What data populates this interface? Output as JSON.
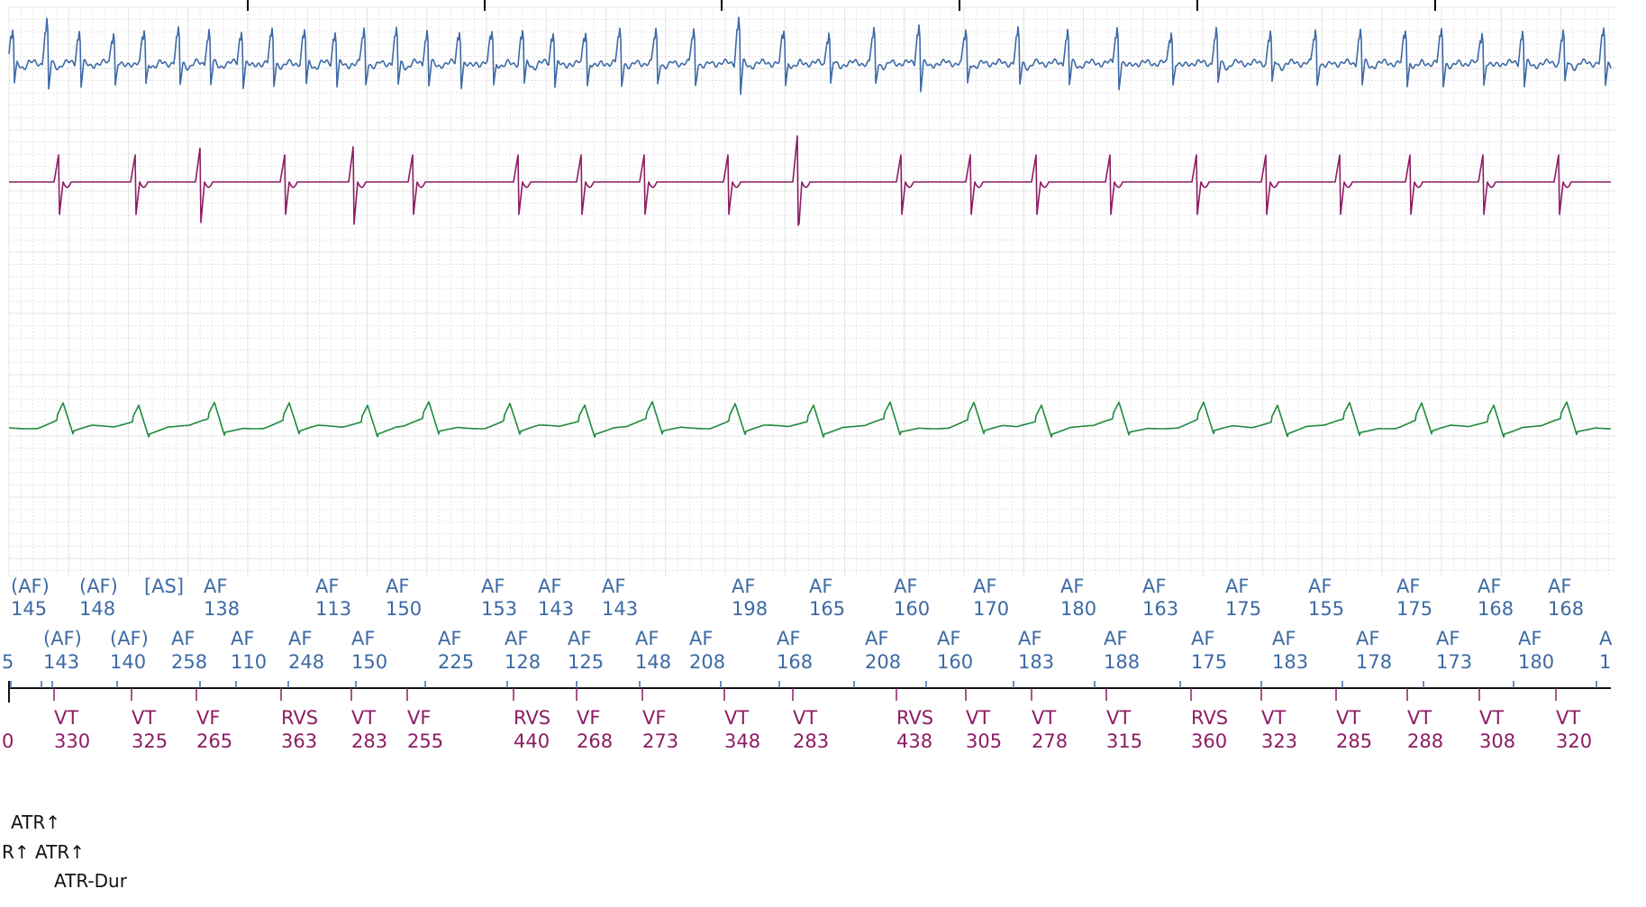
{
  "colors": {
    "background": "#ffffff",
    "grid_major": "#e4e4e4",
    "grid_minor": "#c9c9c9",
    "channel1": "#3d6aa5",
    "channel2": "#8c1d63",
    "channel3": "#1e8a3d",
    "atrial_markers": "#3d6aa5",
    "ventricular_markers": "#8c1d63",
    "event_text": "#111111"
  },
  "chart_data": {
    "type": "line",
    "title": "",
    "series": [
      {
        "waveform": "blue",
        "color": "#3d6aa5"
      },
      {
        "waveform": "magenta",
        "color": "#8c1d63"
      },
      {
        "waveform": "green",
        "color": "#1e8a3d"
      }
    ],
    "atrial_row1": [
      {
        "label": "(AF)",
        "value": "145"
      },
      {
        "label": "(AF)",
        "value": "148"
      },
      {
        "label": "[AS]",
        "value": ""
      },
      {
        "label": "AF",
        "value": "138"
      },
      {
        "label": "AF",
        "value": "113"
      },
      {
        "label": "AF",
        "value": "150"
      },
      {
        "label": "AF",
        "value": "153"
      },
      {
        "label": "AF",
        "value": "143"
      },
      {
        "label": "AF",
        "value": "143"
      },
      {
        "label": "AF",
        "value": "198"
      },
      {
        "label": "AF",
        "value": "165"
      },
      {
        "label": "AF",
        "value": "160"
      },
      {
        "label": "AF",
        "value": "170"
      },
      {
        "label": "AF",
        "value": "180"
      },
      {
        "label": "AF",
        "value": "163"
      },
      {
        "label": "AF",
        "value": "175"
      },
      {
        "label": "AF",
        "value": "155"
      },
      {
        "label": "AF",
        "value": "175"
      },
      {
        "label": "AF",
        "value": "168"
      },
      {
        "label": "AF",
        "value": "168"
      }
    ],
    "atrial_row2": [
      {
        "label": "",
        "value": "5"
      },
      {
        "label": "(AF)",
        "value": "143"
      },
      {
        "label": "(AF)",
        "value": "140"
      },
      {
        "label": "AF",
        "value": "258"
      },
      {
        "label": "AF",
        "value": "110"
      },
      {
        "label": "AF",
        "value": "248"
      },
      {
        "label": "AF",
        "value": "150"
      },
      {
        "label": "AF",
        "value": "225"
      },
      {
        "label": "AF",
        "value": "128"
      },
      {
        "label": "AF",
        "value": "125"
      },
      {
        "label": "AF",
        "value": "148"
      },
      {
        "label": "AF",
        "value": "208"
      },
      {
        "label": "AF",
        "value": "168"
      },
      {
        "label": "AF",
        "value": "208"
      },
      {
        "label": "AF",
        "value": "160"
      },
      {
        "label": "AF",
        "value": "183"
      },
      {
        "label": "AF",
        "value": "188"
      },
      {
        "label": "AF",
        "value": "175"
      },
      {
        "label": "AF",
        "value": "183"
      },
      {
        "label": "AF",
        "value": "178"
      },
      {
        "label": "AF",
        "value": "173"
      },
      {
        "label": "AF",
        "value": "180"
      },
      {
        "label": "A",
        "value": "1"
      }
    ],
    "ventricular": [
      {
        "label": "",
        "value": "0"
      },
      {
        "label": "VT",
        "value": "330"
      },
      {
        "label": "VT",
        "value": "325"
      },
      {
        "label": "VF",
        "value": "265"
      },
      {
        "label": "RVS",
        "value": "363"
      },
      {
        "label": "VT",
        "value": "283"
      },
      {
        "label": "VF",
        "value": "255"
      },
      {
        "label": "RVS",
        "value": "440"
      },
      {
        "label": "VF",
        "value": "268"
      },
      {
        "label": "VF",
        "value": "273"
      },
      {
        "label": "VT",
        "value": "348"
      },
      {
        "label": "VT",
        "value": "283"
      },
      {
        "label": "RVS",
        "value": "438"
      },
      {
        "label": "VT",
        "value": "305"
      },
      {
        "label": "VT",
        "value": "278"
      },
      {
        "label": "VT",
        "value": "315"
      },
      {
        "label": "RVS",
        "value": "360"
      },
      {
        "label": "VT",
        "value": "323"
      },
      {
        "label": "VT",
        "value": "285"
      },
      {
        "label": "VT",
        "value": "288"
      },
      {
        "label": "VT",
        "value": "308"
      },
      {
        "label": "VT",
        "value": "320"
      }
    ],
    "events": [
      {
        "text": "ATR↑"
      },
      {
        "text": "R↑ ATR↑"
      },
      {
        "text": "ATR-Dur"
      }
    ]
  }
}
